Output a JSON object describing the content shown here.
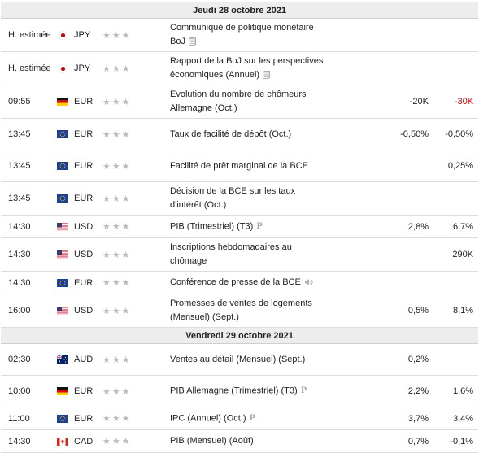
{
  "days": [
    {
      "label": "Jeudi 28 octobre 2021",
      "events": [
        {
          "time": "H. estimée",
          "flag": "jp",
          "currency": "JPY",
          "stars": "★★★",
          "title": "Communiqué de politique monétaire BoJ",
          "icon": "doc-icon",
          "actual": "",
          "forecast": "",
          "previous": ""
        },
        {
          "time": "H. estimée",
          "flag": "jp",
          "currency": "JPY",
          "stars": "★★★",
          "title": "Rapport de la BoJ sur les perspectives économiques (Annuel)",
          "icon": "doc-icon",
          "actual": "",
          "forecast": "",
          "previous": ""
        },
        {
          "time": "09:55",
          "flag": "de",
          "currency": "EUR",
          "stars": "★★★",
          "title": "Evolution du nombre de chômeurs Allemagne (Oct.)",
          "icon": "",
          "actual": "",
          "forecast": "-20K",
          "previous": "-30K",
          "previous_color": "#e00000"
        },
        {
          "time": "13:45",
          "flag": "eu",
          "currency": "EUR",
          "stars": "★★★",
          "title": "Taux de facilité de dépôt (Oct.)",
          "icon": "",
          "actual": "",
          "forecast": "-0,50%",
          "previous": "-0,50%"
        },
        {
          "time": "13:45",
          "flag": "eu",
          "currency": "EUR",
          "stars": "★★★",
          "title": "Facilité de prêt marginal de la BCE",
          "icon": "",
          "actual": "",
          "forecast": "",
          "previous": "0,25%"
        },
        {
          "time": "13:45",
          "flag": "eu",
          "currency": "EUR",
          "stars": "★★★",
          "title": "Décision de la BCE sur les taux d'intérêt (Oct.)",
          "icon": "",
          "actual": "",
          "forecast": "",
          "previous": ""
        },
        {
          "time": "14:30",
          "flag": "us",
          "currency": "USD",
          "stars": "★★★",
          "title": "PIB (Trimestriel) (T3)",
          "icon": "p-icon",
          "actual": "",
          "forecast": "2,8%",
          "previous": "6,7%"
        },
        {
          "time": "14:30",
          "flag": "us",
          "currency": "USD",
          "stars": "★★★",
          "title": "Inscriptions hebdomadaires au chômage",
          "icon": "",
          "actual": "",
          "forecast": "",
          "previous": "290K"
        },
        {
          "time": "14:30",
          "flag": "eu",
          "currency": "EUR",
          "stars": "★★★",
          "title": "Conférence de presse de la BCE",
          "icon": "speaker-icon",
          "actual": "",
          "forecast": "",
          "previous": ""
        },
        {
          "time": "16:00",
          "flag": "us",
          "currency": "USD",
          "stars": "★★★",
          "title": "Promesses de ventes de logements (Mensuel) (Sept.)",
          "icon": "",
          "actual": "",
          "forecast": "0,5%",
          "previous": "8,1%"
        }
      ]
    },
    {
      "label": "Vendredi 29 octobre 2021",
      "events": [
        {
          "time": "02:30",
          "flag": "au",
          "currency": "AUD",
          "stars": "★★★",
          "title": "Ventes au détail (Mensuel) (Sept.)",
          "icon": "",
          "actual": "",
          "forecast": "0,2%",
          "previous": ""
        },
        {
          "time": "10:00",
          "flag": "de",
          "currency": "EUR",
          "stars": "★★★",
          "title": "PIB Allemagne (Trimestriel) (T3)",
          "icon": "p-icon",
          "actual": "",
          "forecast": "2,2%",
          "previous": "1,6%"
        },
        {
          "time": "11:00",
          "flag": "eu",
          "currency": "EUR",
          "stars": "★★★",
          "title": "IPC (Annuel) (Oct.)",
          "icon": "p-icon",
          "actual": "",
          "forecast": "3,7%",
          "previous": "3,4%"
        },
        {
          "time": "14:30",
          "flag": "ca",
          "currency": "CAD",
          "stars": "★★★",
          "title": "PIB (Mensuel) (Août)",
          "icon": "",
          "actual": "",
          "forecast": "0,7%",
          "previous": "-0,1%"
        }
      ]
    }
  ]
}
